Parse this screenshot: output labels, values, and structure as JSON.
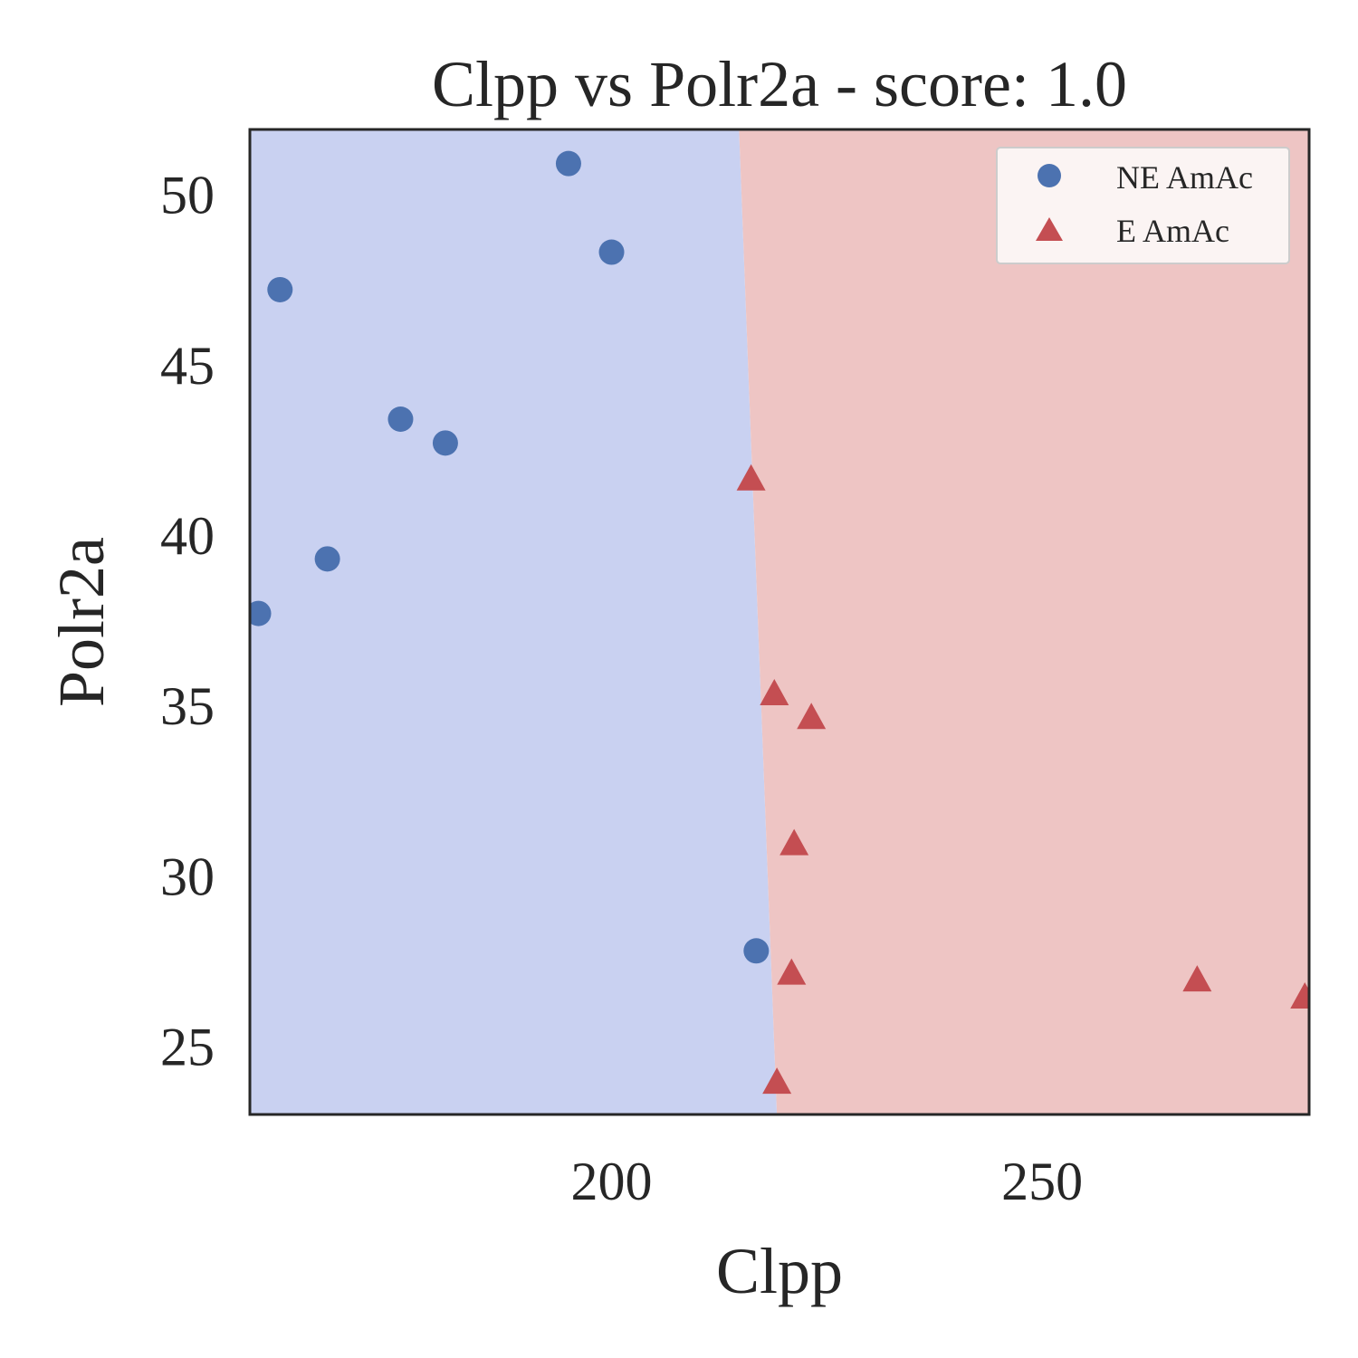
{
  "chart_data": {
    "type": "scatter",
    "title": "Clpp vs Polr2a - score: 1.0",
    "xlabel": "Clpp",
    "ylabel": "Polr2a",
    "xlim": [
      158,
      281
    ],
    "ylim": [
      23.0,
      51.9
    ],
    "x_ticks": [
      200,
      250
    ],
    "y_ticks": [
      25,
      30,
      35,
      40,
      45,
      50
    ],
    "grid": false,
    "legend_position": "top-right",
    "decision_boundary": {
      "points": [
        [
          214.8,
          51.9
        ],
        [
          219.2,
          23.0
        ]
      ],
      "left_region_color": "#c9d1f1",
      "right_region_color": "#eec5c4"
    },
    "series": [
      {
        "name": "NE AmAc",
        "marker": "circle",
        "color": "#4c72b0",
        "points": [
          [
            195.0,
            50.9
          ],
          [
            200.0,
            48.3
          ],
          [
            161.5,
            47.2
          ],
          [
            175.5,
            43.4
          ],
          [
            180.7,
            42.7
          ],
          [
            167.0,
            39.3
          ],
          [
            159.0,
            37.7
          ],
          [
            216.8,
            27.8
          ]
        ]
      },
      {
        "name": "E AmAc",
        "marker": "triangle",
        "color": "#c44e52",
        "points": [
          [
            216.2,
            41.6
          ],
          [
            218.9,
            35.3
          ],
          [
            223.2,
            34.6
          ],
          [
            221.2,
            30.9
          ],
          [
            220.9,
            27.1
          ],
          [
            219.2,
            23.9
          ],
          [
            268.0,
            26.9
          ],
          [
            280.5,
            26.4
          ]
        ]
      }
    ]
  }
}
